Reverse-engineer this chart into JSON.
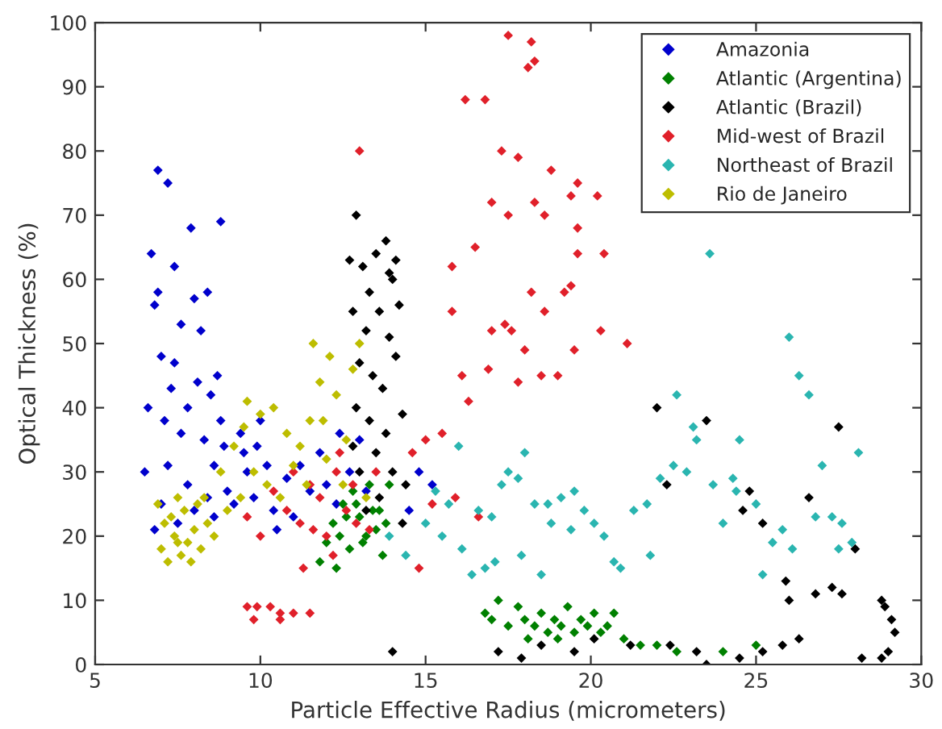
{
  "chart_data": {
    "type": "scatter",
    "xlabel": "Particle Effective Radius (micrometers)",
    "ylabel": "Optical Thickness (%)",
    "xlim": [
      5,
      30
    ],
    "xticks": [
      5,
      10,
      15,
      20,
      25,
      30
    ],
    "ylim": [
      0,
      100
    ],
    "yticks": [
      0,
      10,
      20,
      30,
      40,
      50,
      60,
      70,
      80,
      90,
      100
    ],
    "grid": false,
    "legend": "top right",
    "marker": "diamond",
    "series": [
      {
        "name": "Amazonia",
        "color": "#0000cc",
        "x": [
          6.7,
          6.9,
          7.2,
          6.8,
          7.4,
          7.9,
          8.8,
          8.4,
          8.0,
          7.6,
          8.2,
          7.0,
          7.3,
          8.1,
          8.7,
          8.5,
          7.1,
          7.6,
          8.3,
          8.9,
          9.5,
          6.5,
          7.2,
          7.8,
          8.4,
          9.0,
          9.6,
          10.2,
          10.8,
          11.5,
          7.0,
          7.5,
          8.0,
          8.6,
          9.2,
          9.8,
          10.4,
          11.0,
          12.0,
          12.4,
          12.7,
          11.8,
          13.2,
          14.5,
          14.8,
          15.2,
          6.6,
          7.8,
          8.8,
          9.4,
          10.0,
          7.4,
          6.9,
          8.6,
          9.9,
          11.2,
          12.3,
          13.0,
          6.8,
          10.5
        ],
        "values": [
          64,
          77,
          75,
          56,
          62,
          68,
          69,
          58,
          57,
          53,
          52,
          48,
          43,
          44,
          45,
          42,
          38,
          36,
          35,
          34,
          33,
          30,
          31,
          28,
          26,
          27,
          30,
          31,
          29,
          27,
          25,
          22,
          24,
          23,
          25,
          26,
          24,
          23,
          28,
          36,
          30,
          33,
          27,
          24,
          30,
          28,
          40,
          40,
          38,
          36,
          38,
          47,
          58,
          31,
          34,
          31,
          25,
          35,
          21,
          21
        ]
      },
      {
        "name": "Atlantic (Argentina)",
        "color": "#008000",
        "x": [
          12.2,
          12.5,
          12.8,
          13.0,
          13.2,
          13.4,
          13.6,
          13.8,
          13.1,
          12.7,
          12.4,
          13.5,
          13.9,
          12.9,
          13.3,
          12.0,
          11.8,
          12.3,
          13.7,
          12.6,
          16.8,
          17.2,
          17.5,
          17.8,
          18.0,
          18.3,
          18.5,
          18.7,
          18.9,
          19.1,
          19.3,
          19.5,
          19.7,
          19.9,
          20.1,
          20.3,
          17.0,
          18.1,
          19.0,
          20.5,
          21.0,
          21.5,
          22.0,
          22.6,
          24.0,
          25.0,
          20.7
        ],
        "values": [
          22,
          25,
          27,
          23,
          20,
          24,
          24,
          22,
          19,
          18,
          20,
          21,
          28,
          25,
          28,
          19,
          16,
          15,
          17,
          23,
          8,
          10,
          6,
          9,
          7,
          6,
          8,
          5,
          7,
          6,
          9,
          5,
          7,
          6,
          8,
          5,
          7,
          4,
          4,
          6,
          4,
          3,
          3,
          2,
          2,
          3,
          8
        ]
      },
      {
        "name": "Atlantic (Brazil)",
        "color": "#000000",
        "x": [
          12.9,
          13.1,
          12.8,
          13.3,
          13.5,
          13.8,
          14.0,
          13.6,
          13.2,
          13.9,
          14.2,
          13.0,
          13.4,
          13.7,
          14.1,
          12.9,
          13.3,
          13.8,
          14.3,
          13.5,
          13.0,
          14.0,
          14.4,
          12.8,
          13.6,
          14.3,
          13.2,
          13.9,
          12.7,
          14.1,
          14.0,
          17.2,
          17.9,
          18.5,
          19.5,
          20.1,
          21.2,
          22.4,
          23.2,
          23.5,
          24.5,
          25.2,
          25.8,
          26.3,
          26.8,
          27.3,
          27.6,
          28.2,
          28.8,
          29.0,
          28.9,
          28.8,
          29.1,
          29.2,
          23.5,
          22.3,
          24.8,
          25.2,
          26.6,
          27.5,
          28.0,
          25.9,
          26.0,
          22.0,
          24.6
        ],
        "values": [
          70,
          62,
          55,
          58,
          64,
          66,
          60,
          55,
          52,
          51,
          56,
          47,
          45,
          43,
          48,
          40,
          38,
          36,
          39,
          33,
          30,
          30,
          28,
          34,
          26,
          22,
          24,
          61,
          63,
          63,
          2,
          2,
          1,
          3,
          2,
          4,
          3,
          3,
          2,
          0,
          1,
          2,
          3,
          4,
          11,
          12,
          11,
          1,
          1,
          2,
          9,
          10,
          7,
          5,
          38,
          28,
          27,
          22,
          26,
          37,
          18,
          13,
          10,
          40,
          24
        ]
      },
      {
        "name": "Mid-west of Brazil",
        "color": "#e0202a",
        "x": [
          17.5,
          18.2,
          18.3,
          18.1,
          16.2,
          16.8,
          17.3,
          17.8,
          18.8,
          19.6,
          20.2,
          17.0,
          17.5,
          18.6,
          18.3,
          19.4,
          19.6,
          20.4,
          19.6,
          16.5,
          15.8,
          18.2,
          19.2,
          18.6,
          19.4,
          17.4,
          18.0,
          18.5,
          19.0,
          17.6,
          17.0,
          16.9,
          17.8,
          19.5,
          21.1,
          20.3,
          15.8,
          16.1,
          16.3,
          15.5,
          15.0,
          14.6,
          15.2,
          15.9,
          16.6,
          14.8,
          13.0,
          12.3,
          11.8,
          11.2,
          10.8,
          11.5,
          12.0,
          12.6,
          12.9,
          13.3,
          12.4,
          11.0,
          10.4,
          10.0,
          9.6,
          13.5,
          9.6,
          9.9,
          10.3,
          10.6,
          11.0,
          11.5,
          9.8,
          10.6,
          11.3,
          12.2,
          11.6,
          12.8
        ],
        "values": [
          98,
          97,
          94,
          93,
          88,
          88,
          80,
          79,
          77,
          75,
          73,
          72,
          70,
          70,
          72,
          73,
          68,
          64,
          64,
          65,
          62,
          58,
          58,
          55,
          59,
          53,
          49,
          45,
          45,
          52,
          52,
          46,
          44,
          49,
          50,
          52,
          55,
          45,
          41,
          36,
          35,
          33,
          25,
          26,
          23,
          15,
          80,
          30,
          26,
          22,
          24,
          28,
          20,
          24,
          22,
          21,
          33,
          30,
          27,
          20,
          23,
          30,
          9,
          9,
          9,
          8,
          8,
          8,
          7,
          7,
          15,
          17,
          21,
          28
        ]
      },
      {
        "name": "Northeast of Brazil",
        "color": "#2ab5b0",
        "x": [
          15.0,
          15.5,
          15.7,
          16.1,
          16.4,
          16.8,
          17.0,
          17.3,
          17.5,
          17.8,
          18.0,
          17.1,
          16.6,
          18.3,
          18.7,
          19.1,
          19.5,
          19.8,
          20.1,
          20.4,
          20.7,
          20.9,
          19.4,
          18.8,
          21.3,
          21.7,
          22.1,
          22.5,
          22.9,
          23.2,
          22.6,
          23.7,
          23.6,
          24.0,
          24.3,
          24.5,
          25.0,
          25.5,
          25.8,
          26.0,
          26.3,
          26.6,
          27.0,
          27.3,
          27.6,
          27.9,
          27.5,
          28.1,
          26.1,
          26.8,
          25.2,
          23.1,
          21.8,
          15.3,
          14.4,
          13.9,
          16.0,
          18.5,
          17.9,
          24.4
        ],
        "values": [
          22,
          20,
          25,
          18,
          14,
          15,
          23,
          28,
          30,
          29,
          33,
          16,
          24,
          25,
          25,
          26,
          27,
          24,
          22,
          20,
          16,
          15,
          21,
          22,
          24,
          25,
          29,
          31,
          30,
          35,
          42,
          28,
          64,
          22,
          29,
          35,
          25,
          19,
          21,
          51,
          45,
          42,
          31,
          23,
          22,
          19,
          18,
          33,
          18,
          23,
          14,
          37,
          17,
          27,
          17,
          20,
          34,
          14,
          17,
          27
        ]
      },
      {
        "name": "Rio de Janeiro",
        "color": "#bdbd00",
        "x": [
          7.0,
          7.2,
          7.4,
          7.6,
          7.8,
          8.0,
          8.2,
          7.3,
          7.7,
          8.1,
          8.4,
          7.1,
          7.5,
          7.9,
          8.3,
          6.9,
          8.6,
          7.5,
          8.8,
          9.2,
          9.6,
          10.0,
          10.4,
          10.8,
          11.2,
          11.5,
          11.8,
          12.1,
          11.6,
          12.3,
          12.6,
          11.0,
          10.2,
          9.8,
          9.4,
          9.0,
          10.6,
          11.4,
          12.0,
          12.8,
          13.0,
          12.5,
          13.2,
          9.5,
          11.9
        ],
        "values": [
          18,
          16,
          20,
          17,
          19,
          21,
          18,
          23,
          24,
          25,
          22,
          22,
          26,
          16,
          26,
          25,
          20,
          19,
          30,
          34,
          41,
          39,
          40,
          36,
          34,
          38,
          44,
          48,
          50,
          42,
          35,
          31,
          28,
          30,
          26,
          24,
          26,
          28,
          32,
          46,
          50,
          28,
          26,
          37,
          38
        ]
      }
    ]
  }
}
